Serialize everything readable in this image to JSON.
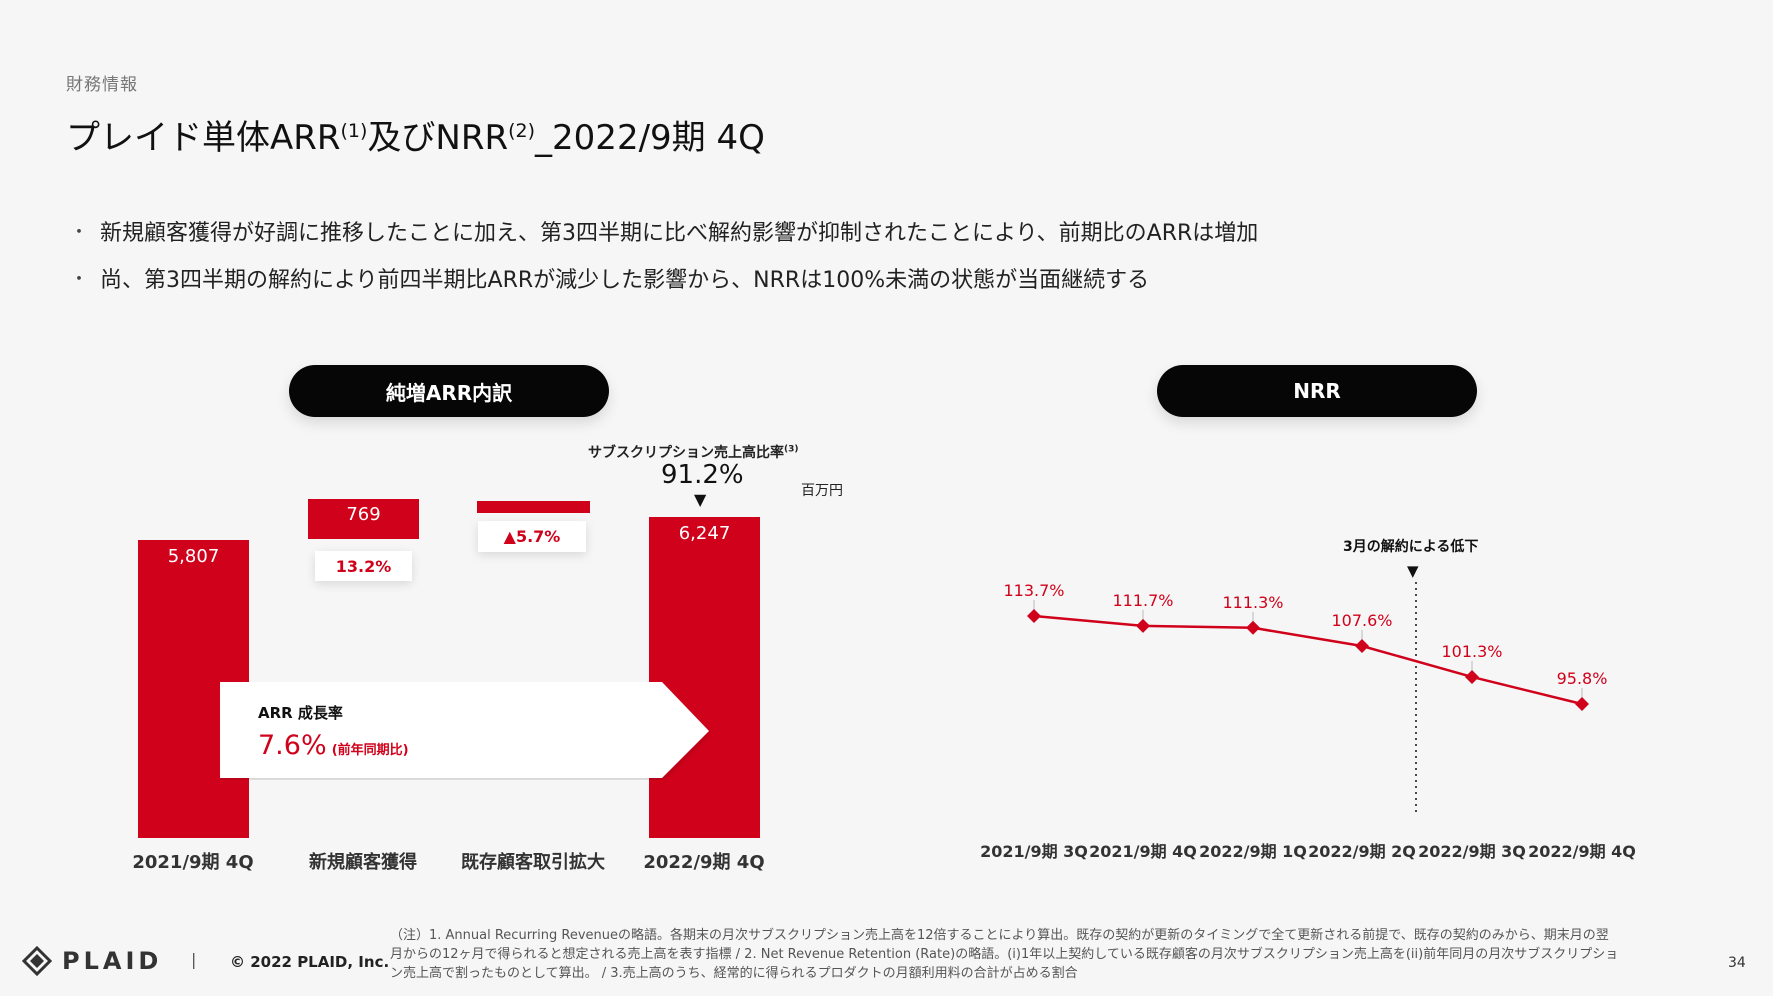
{
  "header": {
    "category": "財務情報",
    "title_main": "プレイド単体ARR",
    "title_sup1": "(1)",
    "title_mid": "及びNRR",
    "title_sup2": "(2)",
    "title_end": "_2022/9期 4Q"
  },
  "bullets": [
    "新規顧客獲得が好調に推移したことに加え、第3四半期に比べ解約影響が抑制されたことにより、前期比のARRは増加",
    "尚、第3四半期の解約により前四半期比ARRが減少した影響から、NRRは100%未満の状態が当面継続する"
  ],
  "left_panel": {
    "pill": "純増ARR内訳",
    "subscription_label": "サブスクリプション売上高比率",
    "subscription_sup": "(3)",
    "subscription_value": "91.2%",
    "unit": "百万円",
    "growth_label": "ARR 成長率",
    "growth_value": "7.6%",
    "growth_note": "(前年同期比)",
    "arrow_marker": "▼"
  },
  "chart_data": [
    {
      "type": "bar",
      "subtype": "waterfall",
      "unit": "百万円",
      "categories": [
        "2021/9期 4Q",
        "新規顧客獲得",
        "既存顧客取引拡大",
        "2022/9期 4Q"
      ],
      "values": [
        5807,
        769,
        null,
        6247
      ],
      "value_labels": [
        "5,807",
        "769",
        "",
        "6,247"
      ],
      "change_labels": [
        "",
        "13.2%",
        "▲5.7%",
        ""
      ]
    },
    {
      "type": "line",
      "title": "NRR",
      "categories": [
        "2021/9期 3Q",
        "2021/9期 4Q",
        "2022/9期 1Q",
        "2022/9期 2Q",
        "2022/9期 3Q",
        "2022/9期 4Q"
      ],
      "values": [
        113.7,
        111.7,
        111.3,
        107.6,
        101.3,
        95.8
      ],
      "value_labels": [
        "113.7%",
        "111.7%",
        "111.3%",
        "107.6%",
        "101.3%",
        "95.8%"
      ],
      "annotation": "3月の解約による低下",
      "color": "#d0021b"
    }
  ],
  "right_panel": {
    "pill": "NRR",
    "annotation": "3月の解約による低下",
    "arrow_marker": "▼"
  },
  "footer": {
    "logo": "PLAID",
    "separator": "|",
    "copyright": "© 2022 PLAID, Inc.",
    "notes": [
      "（注）1. Annual Recurring Revenueの略語。各期末の月次サブスクリプション売上高を12倍することにより算出。既存の契約が更新のタイミングで全て更新される前提で、既存の契約のみから、期末月の翌",
      "月からの12ヶ月で得られると想定される売上高を表す指標 / 2. Net Revenue Retention (Rate)の略語。(i)1年以上契約している既存顧客の月次サブスクリプション売上高を(ii)前年同月の月次サブスクリプショ",
      "ン売上高で割ったものとして算出。 / 3.売上高のうち、経常的に得られるプロダクトの月額利用料の合計が占める割合"
    ],
    "page": "34"
  },
  "colors": {
    "accent": "#d0021b",
    "pill": "#060606"
  }
}
